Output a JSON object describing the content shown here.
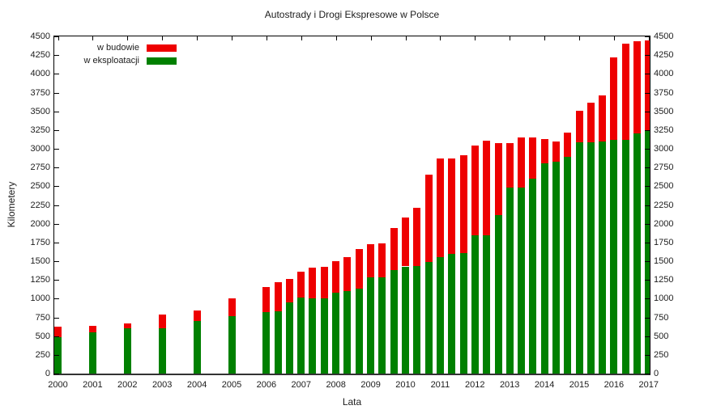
{
  "title": "Autostrady i Drogi Ekspresowe w Polsce",
  "xlabel": "Lata",
  "ylabel": "Kilometery",
  "legend": [
    {
      "label": "w budowie",
      "color": "#ee0000"
    },
    {
      "label": "w eksploatacji",
      "color": "#008000"
    }
  ],
  "colors": {
    "construction": "#ee0000",
    "operational": "#008000",
    "frame": "#000000",
    "text": "#1c1c1c"
  },
  "chart_data": {
    "type": "bar",
    "stacked": true,
    "title": "Autostrady i Drogi Ekspresowe w Polsce",
    "xlabel": "Lata",
    "ylabel": "Kilometery",
    "ylim": [
      0,
      4500
    ],
    "xlim": [
      1999.9,
      2017.1
    ],
    "ytick_step": 250,
    "grid": false,
    "legend_position": "top-left-inside",
    "x": [
      2000,
      2001,
      2002,
      2003,
      2004,
      2005,
      2006,
      2006.33,
      2006.67,
      2007,
      2007.33,
      2007.67,
      2008,
      2008.33,
      2008.67,
      2009,
      2009.33,
      2009.67,
      2010,
      2010.33,
      2010.67,
      2011,
      2011.33,
      2011.67,
      2012,
      2012.33,
      2012.67,
      2013,
      2013.33,
      2013.67,
      2014,
      2014.33,
      2014.67,
      2015,
      2015.33,
      2015.67,
      2016,
      2016.33,
      2016.67,
      2017
    ],
    "series": [
      {
        "name": "w eksploatacji",
        "color": "#008000",
        "values": [
          490,
          550,
          605,
          605,
          700,
          770,
          820,
          830,
          945,
          1010,
          1005,
          1005,
          1075,
          1105,
          1135,
          1280,
          1285,
          1380,
          1430,
          1440,
          1490,
          1550,
          1595,
          1610,
          1850,
          1850,
          2110,
          2480,
          2480,
          2600,
          2810,
          2830,
          2895,
          3085,
          3090,
          3100,
          3115,
          3115,
          3200,
          3245
        ]
      },
      {
        "name": "w budowie",
        "color": "#ee0000",
        "values": [
          135,
          90,
          65,
          185,
          140,
          230,
          330,
          385,
          315,
          355,
          405,
          415,
          430,
          450,
          525,
          445,
          450,
          560,
          650,
          770,
          1160,
          1325,
          1280,
          1300,
          1195,
          1260,
          970,
          595,
          670,
          550,
          325,
          270,
          325,
          420,
          520,
          610,
          1105,
          1290,
          1235,
          1205
        ]
      }
    ],
    "totals": [
      625,
      640,
      670,
      790,
      840,
      1000,
      1150,
      1215,
      1260,
      1365,
      1410,
      1420,
      1505,
      1555,
      1660,
      1725,
      1735,
      1940,
      2080,
      2210,
      2650,
      2875,
      2875,
      2910,
      3045,
      3110,
      3080,
      3075,
      3150,
      3150,
      3135,
      3100,
      3220,
      3505,
      3610,
      3710,
      4220,
      4405,
      4435,
      4450
    ],
    "xticks": [
      2000,
      2001,
      2002,
      2003,
      2004,
      2005,
      2006,
      2007,
      2008,
      2009,
      2010,
      2011,
      2012,
      2013,
      2014,
      2015,
      2016,
      2017
    ],
    "yticks": [
      0,
      250,
      500,
      750,
      1000,
      1250,
      1500,
      1750,
      2000,
      2250,
      2500,
      2750,
      3000,
      3250,
      3500,
      3750,
      4000,
      4250,
      4500
    ]
  }
}
